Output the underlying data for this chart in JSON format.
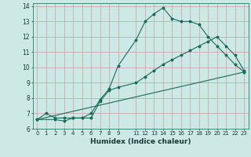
{
  "xlabel": "Humidex (Indice chaleur)",
  "ylabel": "",
  "xlim": [
    -0.5,
    23.5
  ],
  "ylim": [
    6,
    14.2
  ],
  "xticks": [
    0,
    1,
    2,
    3,
    4,
    5,
    6,
    7,
    8,
    9,
    11,
    12,
    13,
    14,
    15,
    16,
    17,
    18,
    19,
    20,
    21,
    22,
    23
  ],
  "yticks": [
    6,
    7,
    8,
    9,
    10,
    11,
    12,
    13,
    14
  ],
  "bg_color": "#cce9e5",
  "grid_color": "#c8a0a0",
  "line_color": "#1a6b5a",
  "line1_x": [
    0,
    1,
    2,
    3,
    4,
    5,
    6,
    7,
    8,
    9,
    11,
    12,
    13,
    14,
    15,
    16,
    17,
    18,
    19,
    20,
    21,
    22,
    23
  ],
  "line1_y": [
    6.6,
    7.0,
    6.7,
    6.7,
    6.7,
    6.7,
    7.0,
    7.9,
    8.6,
    10.1,
    11.8,
    13.0,
    13.5,
    13.9,
    13.2,
    13.0,
    13.0,
    12.8,
    12.0,
    11.4,
    10.8,
    10.2,
    9.7
  ],
  "line2_x": [
    0,
    2,
    3,
    4,
    5,
    6,
    7,
    8,
    9,
    11,
    12,
    13,
    14,
    15,
    16,
    17,
    18,
    19,
    20,
    21,
    22,
    23
  ],
  "line2_y": [
    6.6,
    6.6,
    6.5,
    6.7,
    6.7,
    6.7,
    7.8,
    8.5,
    8.7,
    9.0,
    9.4,
    9.8,
    10.2,
    10.5,
    10.8,
    11.1,
    11.4,
    11.7,
    12.0,
    11.4,
    10.8,
    9.8
  ],
  "line3_x": [
    0,
    23
  ],
  "line3_y": [
    6.6,
    9.7
  ]
}
